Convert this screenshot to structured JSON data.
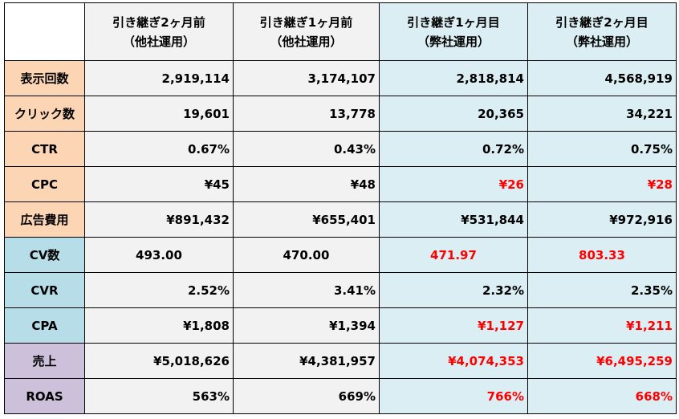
{
  "table": {
    "header": [
      {
        "title": "引き継ぎ2ヶ月前",
        "sub": "（他社運用）"
      },
      {
        "title": "引き継ぎ1ヶ月前",
        "sub": "（他社運用）"
      },
      {
        "title": "引き継ぎ1ヶ月目",
        "sub": "（弊社運用）"
      },
      {
        "title": "引き継ぎ2ヶ月目",
        "sub": "（弊社運用）"
      }
    ],
    "rows": [
      {
        "label": "表示回数",
        "values": [
          "2,919,114",
          "3,174,107",
          "2,818,814",
          "4,568,919"
        ]
      },
      {
        "label": "クリック数",
        "values": [
          "19,601",
          "13,778",
          "20,365",
          "34,221"
        ]
      },
      {
        "label": "CTR",
        "values": [
          "0.67%",
          "0.43%",
          "0.72%",
          "0.75%"
        ]
      },
      {
        "label": "CPC",
        "values": [
          "¥45",
          "¥48",
          "¥26",
          "¥28"
        ]
      },
      {
        "label": "広告費用",
        "values": [
          "¥891,432",
          "¥655,401",
          "¥531,844",
          "¥972,916"
        ]
      },
      {
        "label": "CV数",
        "values": [
          "493.00",
          "470.00",
          "471.97",
          "803.33"
        ]
      },
      {
        "label": "CVR",
        "values": [
          "2.52%",
          "3.41%",
          "2.32%",
          "2.35%"
        ]
      },
      {
        "label": "CPA",
        "values": [
          "¥1,808",
          "¥1,394",
          "¥1,127",
          "¥1,211"
        ]
      },
      {
        "label": "売上",
        "values": [
          "¥5,018,626",
          "¥4,381,957",
          "¥4,074,353",
          "¥6,495,259"
        ]
      },
      {
        "label": "ROAS",
        "values": [
          "563%",
          "669%",
          "766%",
          "668%"
        ]
      }
    ]
  }
}
